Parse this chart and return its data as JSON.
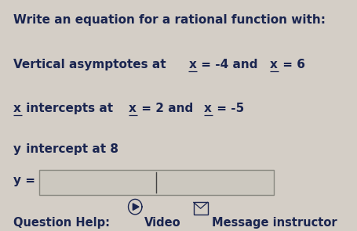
{
  "bg_color": "#d4cec6",
  "text_color": "#1a2550",
  "box_bg": "#ccc8bf",
  "box_edge": "#888880",
  "title": "Write an equation for a rational function with:",
  "line1_pre": "Vertical asymptotes at ",
  "line1_x1": "x",
  "line1_mid": " = -4 and ",
  "line1_x2": "x",
  "line1_post": " = 6",
  "line2_x1": "x",
  "line2_mid": " intercepts at ",
  "line2_x2": "x",
  "line2_mid2": " = 2 and ",
  "line2_x3": "x",
  "line2_post": " = -5",
  "line3_y": "y",
  "line3_rest": " intercept at 8",
  "ylabel": "y =",
  "qhelp": "Question Help:",
  "video_txt": "Video",
  "msg_txt": "Message instructor",
  "font_size": 11.0,
  "font_size_sm": 10.5,
  "figw": 4.56,
  "figh": 2.95,
  "dpi": 100
}
